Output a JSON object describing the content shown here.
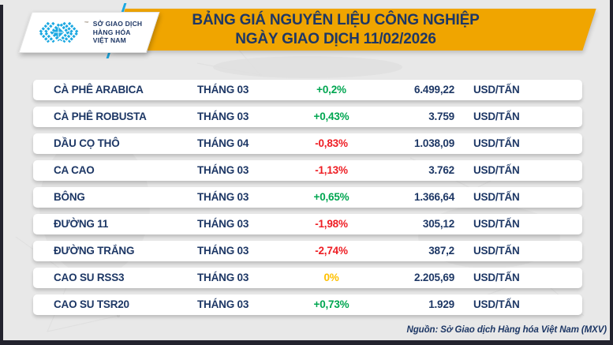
{
  "header": {
    "logo": {
      "icon": "mxv-chevron-diamond-icon",
      "icon_color": "#1BA8E1",
      "trademark": "™",
      "line1": "SỞ GIAO DỊCH",
      "line2": "HÀNG HÓA",
      "line3": "VIỆT NAM"
    },
    "title_line1": "BẢNG GIÁ NGUYÊN LIỆU CÔNG NGHIỆP",
    "title_line2": "NGÀY GIAO DỊCH 11/02/2026"
  },
  "table": {
    "columns": [
      "commodity",
      "contract_month",
      "change_percent",
      "price",
      "unit"
    ],
    "rows": [
      {
        "name": "CÀ PHÊ ARABICA",
        "month": "THÁNG 03",
        "change": "+0,2%",
        "change_color": "#00A651",
        "price": "6.499,22",
        "unit": "USD/TẤN"
      },
      {
        "name": "CÀ PHÊ ROBUSTA",
        "month": "THÁNG 03",
        "change": "+0,43%",
        "change_color": "#00A651",
        "price": "3.759",
        "unit": "USD/TẤN"
      },
      {
        "name": "DẦU CỌ THÔ",
        "month": "THÁNG 04",
        "change": "-0,83%",
        "change_color": "#EE1D23",
        "price": "1.038,09",
        "unit": "USD/TẤN"
      },
      {
        "name": "CA CAO",
        "month": "THÁNG 03",
        "change": "-1,13%",
        "change_color": "#EE1D23",
        "price": "3.762",
        "unit": "USD/TẤN"
      },
      {
        "name": "BÔNG",
        "month": "THÁNG 03",
        "change": "+0,65%",
        "change_color": "#00A651",
        "price": "1.366,64",
        "unit": "USD/TẤN"
      },
      {
        "name": "ĐƯỜNG 11",
        "month": "THÁNG 03",
        "change": "-1,98%",
        "change_color": "#EE1D23",
        "price": "305,12",
        "unit": "USD/TẤN"
      },
      {
        "name": "ĐƯỜNG TRẮNG",
        "month": "THÁNG 03",
        "change": "-2,74%",
        "change_color": "#EE1D23",
        "price": "387,2",
        "unit": "USD/TẤN"
      },
      {
        "name": "CAO SU RSS3",
        "month": "THÁNG 03",
        "change": "0%",
        "change_color": "#FFC000",
        "price": "2.205,69",
        "unit": "USD/TẤN"
      },
      {
        "name": "CAO SU TSR20",
        "month": "THÁNG 03",
        "change": "+0,73%",
        "change_color": "#00A651",
        "price": "1.929",
        "unit": "USD/TẤN"
      }
    ]
  },
  "footer": {
    "source": "Nguồn: Sở Giao dịch Hàng hóa Việt Nam (MXV)"
  },
  "palette": {
    "banner_yellow": "#F0A500",
    "navy_text": "#1D3765",
    "positive_green": "#00A651",
    "negative_red": "#EE1D23",
    "unchanged_yellow": "#FFC000",
    "logo_cyan": "#1BA8E1",
    "background_gray": "#E8E8E8",
    "frame_dark": "#23232E"
  }
}
